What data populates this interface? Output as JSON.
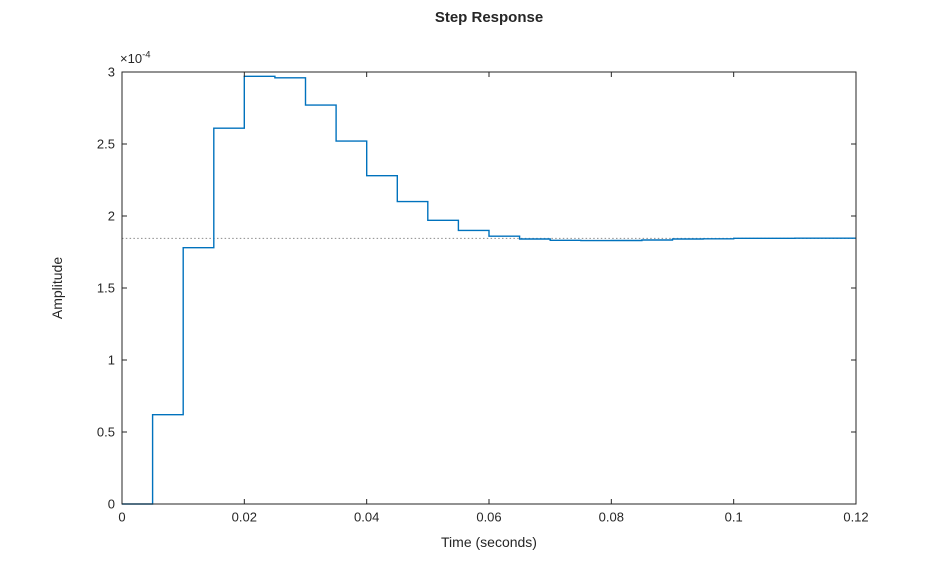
{
  "figure": {
    "background": "#ffffff",
    "axis_color": "#262626",
    "text_color": "#262626"
  },
  "chart_data": {
    "type": "line",
    "style": "stairs",
    "title": "Step Response",
    "xlabel": "Time (seconds)",
    "ylabel": "Amplitude",
    "y_multiplier": {
      "base": "×10",
      "exp": "-4"
    },
    "grid": false,
    "legend": "none",
    "xlim": [
      0,
      0.12
    ],
    "ylim_e4": [
      0,
      3
    ],
    "x_ticks": [
      0,
      0.02,
      0.04,
      0.06,
      0.08,
      0.1,
      0.12
    ],
    "x_tick_labels": [
      "0",
      "0.02",
      "0.04",
      "0.06",
      "0.08",
      "0.1",
      "0.12"
    ],
    "y_ticks_e4": [
      0,
      0.5,
      1,
      1.5,
      2,
      2.5,
      3
    ],
    "y_tick_labels": [
      "0",
      "0.5",
      "1",
      "1.5",
      "2",
      "2.5",
      "3"
    ],
    "series": [
      {
        "name": "step response",
        "color": "#0072BD",
        "x": [
          0,
          0.005,
          0.01,
          0.015,
          0.02,
          0.025,
          0.03,
          0.035,
          0.04,
          0.045,
          0.05,
          0.055,
          0.06,
          0.065,
          0.07,
          0.075,
          0.08,
          0.085,
          0.09,
          0.095,
          0.1,
          0.105,
          0.11,
          0.115,
          0.12
        ],
        "y_e4": [
          0,
          0.62,
          1.78,
          2.61,
          2.97,
          2.96,
          2.77,
          2.52,
          2.28,
          2.1,
          1.97,
          1.9,
          1.86,
          1.84,
          1.831,
          1.829,
          1.83,
          1.833,
          1.84,
          1.842,
          1.845,
          1.845,
          1.846,
          1.846,
          1.846
        ]
      }
    ],
    "reference_lines": [
      {
        "name": "steady-state",
        "y_e4": 1.845,
        "color": "#8c8c8c",
        "style": "dotted"
      }
    ]
  }
}
